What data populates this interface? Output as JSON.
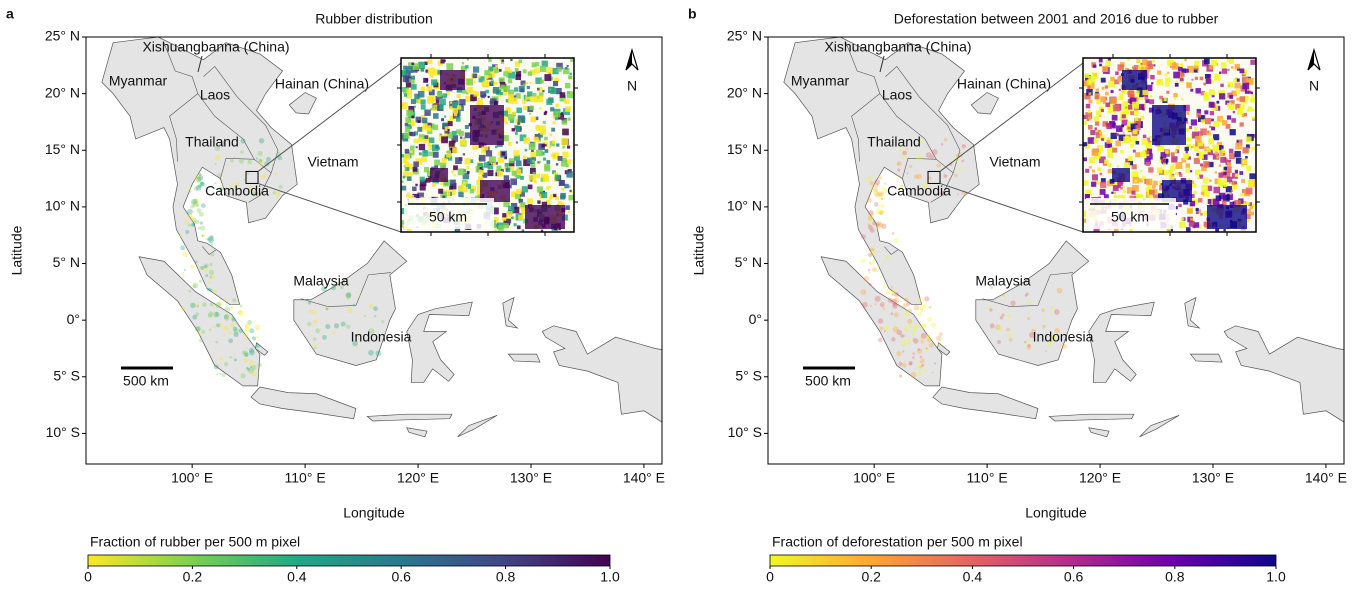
{
  "panels": [
    {
      "letter": "a",
      "title": "Rubber distribution",
      "xlabel": "Longitude",
      "ylabel": "Latitude",
      "xlim": [
        90.6,
        141.6
      ],
      "ylim": [
        -12.7,
        25
      ],
      "xticks": [
        {
          "value": 100,
          "label": "100° E"
        },
        {
          "value": 110,
          "label": "110° E"
        },
        {
          "value": 120,
          "label": "120° E"
        },
        {
          "value": 130,
          "label": "130° E"
        },
        {
          "value": 140,
          "label": "140° E"
        }
      ],
      "yticks": [
        {
          "value": 25,
          "label": "25° N"
        },
        {
          "value": 20,
          "label": "20° N"
        },
        {
          "value": 15,
          "label": "15° N"
        },
        {
          "value": 10,
          "label": "10° N"
        },
        {
          "value": 5,
          "label": "5° N"
        },
        {
          "value": 0,
          "label": "0°"
        },
        {
          "value": -5,
          "label": "5° S"
        },
        {
          "value": -10,
          "label": "10° S"
        }
      ],
      "places": [
        "Xishuangbanna (China)",
        "Myanmar",
        "Laos",
        "Hainan (China)",
        "Thailand",
        "Vietnam",
        "Cambodia",
        "Malaysia",
        "Indonesia"
      ],
      "scale_bar": "500 km",
      "inset_scale_bar": "50 km",
      "north": "N",
      "colorbar": {
        "label": "Fraction of rubber per 500 m pixel",
        "lim": [
          0,
          1
        ],
        "colors": [
          "#fde725",
          "#7ad151",
          "#22a884",
          "#2a788e",
          "#414487",
          "#440154"
        ],
        "ticks": [
          0,
          0.2,
          0.4,
          0.6,
          0.8,
          {
            "value": 1,
            "label": "1.0"
          }
        ]
      }
    },
    {
      "letter": "b",
      "title": "Deforestation between 2001 and 2016 due to rubber",
      "xlabel": "Longitude",
      "ylabel": "Latitude",
      "xlim": [
        90.6,
        141.6
      ],
      "ylim": [
        -12.7,
        25
      ],
      "xticks": [
        {
          "value": 100,
          "label": "100° E"
        },
        {
          "value": 110,
          "label": "110° E"
        },
        {
          "value": 120,
          "label": "120° E"
        },
        {
          "value": 130,
          "label": "130° E"
        },
        {
          "value": 140,
          "label": "140° E"
        }
      ],
      "yticks": [
        {
          "value": 25,
          "label": "25° N"
        },
        {
          "value": 20,
          "label": "20° N"
        },
        {
          "value": 15,
          "label": "15° N"
        },
        {
          "value": 10,
          "label": "10° N"
        },
        {
          "value": 5,
          "label": "5° N"
        },
        {
          "value": 0,
          "label": "0°"
        },
        {
          "value": -5,
          "label": "5° S"
        },
        {
          "value": -10,
          "label": "10° S"
        }
      ],
      "places": [
        "Xishuangbanna (China)",
        "Myanmar",
        "Laos",
        "Hainan (China)",
        "Thailand",
        "Vietnam",
        "Cambodia",
        "Malaysia",
        "Indonesia"
      ],
      "scale_bar": "500 km",
      "inset_scale_bar": "50 km",
      "north": "N",
      "colorbar": {
        "label": "Fraction of deforestation per 500 m pixel",
        "lim": [
          0,
          1
        ],
        "colors": [
          "#f0f921",
          "#fca636",
          "#e16462",
          "#b12a90",
          "#6a00a8",
          "#0d0887"
        ],
        "ticks": [
          0,
          0.2,
          0.4,
          0.6,
          0.8,
          {
            "value": 1,
            "label": "1.0"
          }
        ]
      }
    }
  ]
}
